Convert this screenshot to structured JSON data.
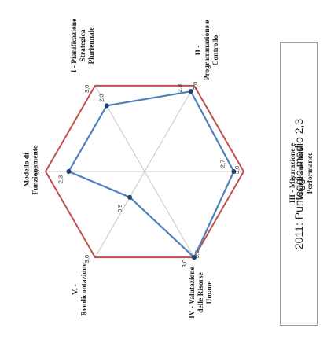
{
  "chart_data": {
    "type": "radar",
    "max": 3.0,
    "axes": [
      {
        "key": "I",
        "lines": [
          "I - Pianificazione",
          "Strategica",
          "Pluriennale"
        ],
        "value": 2.3,
        "tick": "3,0",
        "label": "2,3"
      },
      {
        "key": "II",
        "lines": [
          "II -",
          "Programmazione e",
          "Controllo"
        ],
        "value": 2.8,
        "tick": "3,0",
        "label": "2,8"
      },
      {
        "key": "III",
        "lines": [
          "III - Misurazione e",
          "Valutazione delle",
          "Performance"
        ],
        "value": 2.7,
        "tick": "3,0",
        "label": "2,7"
      },
      {
        "key": "IV",
        "lines": [
          "IV - Valutazione",
          "delle Risorse",
          "Umane"
        ],
        "value": 3.0,
        "tick": "3,0",
        "label": "3,0"
      },
      {
        "key": "V",
        "lines": [
          "V. -",
          "Rendicontazione"
        ],
        "value": 0.9,
        "tick": "3,0",
        "label": "0,9"
      },
      {
        "key": "MF",
        "lines": [
          "Modello di",
          "Funzionamento"
        ],
        "value": 2.3,
        "tick": "3,0",
        "label": "2,3"
      }
    ],
    "colors": {
      "outline": "#c0504d",
      "series": "#4f81bd",
      "spokes": "#c8c8c8"
    }
  },
  "summary": "2011: Punteggio medio 2,3"
}
